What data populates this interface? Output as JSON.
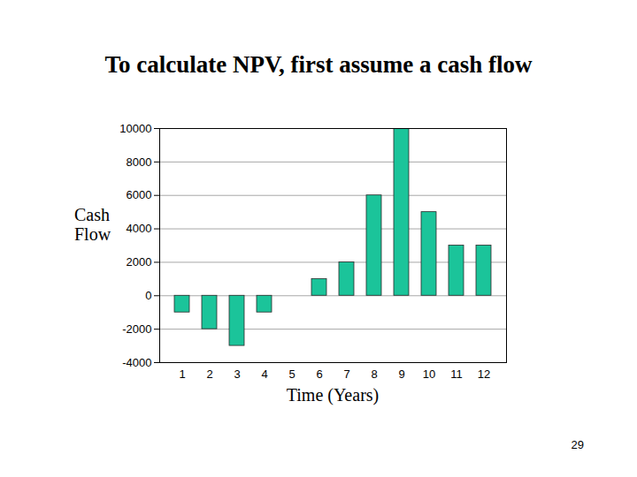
{
  "chart_data": {
    "type": "bar",
    "title": "To calculate NPV, first assume a cash flow",
    "x_label": "Time (Years)",
    "y_label": "Cash Flow",
    "categories": [
      "1",
      "2",
      "3",
      "4",
      "5",
      "6",
      "7",
      "8",
      "9",
      "10",
      "11",
      "12"
    ],
    "values": [
      -1000,
      -2000,
      -3000,
      -1000,
      0,
      1000,
      2000,
      6000,
      10000,
      5000,
      3000,
      3000
    ],
    "color": "#1bc49a",
    "ylim": [
      -4000,
      10000
    ],
    "yticks": [
      -4000,
      -2000,
      0,
      2000,
      4000,
      6000,
      8000,
      10000
    ],
    "grid": true,
    "annotations": [
      "29"
    ]
  }
}
